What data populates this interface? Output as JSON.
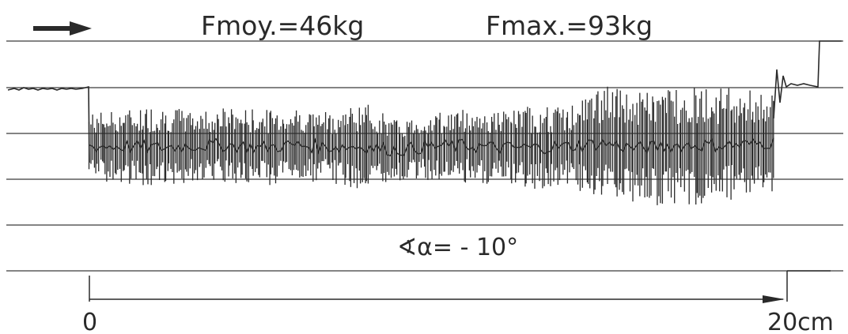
{
  "header": {
    "direction_icon": "arrow-right-icon",
    "mean_force_label": "Fmoy.=46kg",
    "max_force_label": "Fmax.=93kg"
  },
  "angle_label": "∢α= - 10°",
  "scale": {
    "start_label": "0",
    "end_label": "20cm",
    "start_value": 0,
    "end_value": 20,
    "unit": "cm"
  },
  "colors": {
    "ink": "#2a2a2a",
    "grid": "#3a3a3a",
    "paper": "#ffffff"
  },
  "chart_data": {
    "type": "line",
    "title": "",
    "xlabel": "",
    "ylabel": "",
    "x_unit": "cm",
    "xlim": [
      0,
      20
    ],
    "y_unit": "kg",
    "ylim": [
      0,
      93
    ],
    "grid": true,
    "legend": "none",
    "annotations": [
      "Fmoy.=46kg",
      "Fmax.=93kg",
      "∢α= - 10°"
    ],
    "series": [
      {
        "values": [
          {
            "x": 0.0,
            "ymin": 20,
            "ymax": 72
          },
          {
            "x": 1.0,
            "ymin": 18,
            "ymax": 74
          },
          {
            "x": 2.0,
            "ymin": 12,
            "ymax": 78
          },
          {
            "x": 3.0,
            "ymin": 20,
            "ymax": 73
          },
          {
            "x": 4.0,
            "ymin": 18,
            "ymax": 76
          },
          {
            "x": 5.0,
            "ymin": 16,
            "ymax": 74
          },
          {
            "x": 6.0,
            "ymin": 18,
            "ymax": 76
          },
          {
            "x": 7.0,
            "ymin": 19,
            "ymax": 72
          },
          {
            "x": 8.0,
            "ymin": 12,
            "ymax": 80
          },
          {
            "x": 9.0,
            "ymin": 20,
            "ymax": 66
          },
          {
            "x": 10.0,
            "ymin": 20,
            "ymax": 72
          },
          {
            "x": 11.0,
            "ymin": 18,
            "ymax": 75
          },
          {
            "x": 12.0,
            "ymin": 17,
            "ymax": 73
          },
          {
            "x": 13.0,
            "ymin": 13,
            "ymax": 77
          },
          {
            "x": 14.0,
            "ymin": 16,
            "ymax": 76
          },
          {
            "x": 15.0,
            "ymin": 4,
            "ymax": 93
          },
          {
            "x": 16.0,
            "ymin": 2,
            "ymax": 87
          },
          {
            "x": 17.0,
            "ymin": 0,
            "ymax": 93
          },
          {
            "x": 18.0,
            "ymin": 2,
            "ymax": 92
          },
          {
            "x": 19.0,
            "ymin": 4,
            "ymax": 90
          },
          {
            "x": 20.0,
            "ymin": 12,
            "ymax": 86
          }
        ]
      }
    ]
  }
}
